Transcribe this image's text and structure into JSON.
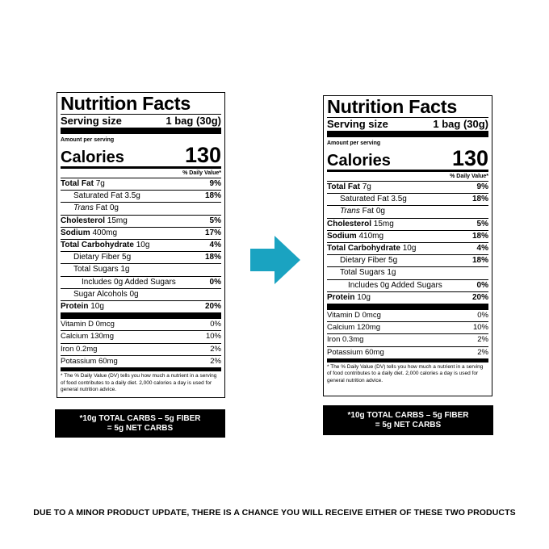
{
  "title": "Nutrition Facts",
  "serving_label": "Serving size",
  "serving_value": "1 bag (30g)",
  "amount_per_serving": "Amount per serving",
  "calories_label": "Calories",
  "dv_header": "% Daily Value*",
  "footnote": "* The % Daily Value (DV) tells you how much a nutrient in a serving of food contributes to a daily diet. 2,000 calories a day is used for general nutrition advice.",
  "old": {
    "calories": "130",
    "total_fat": "7g",
    "total_fat_dv": "9%",
    "sat_fat": "3.5g",
    "sat_fat_dv": "18%",
    "trans_fat": "0g",
    "cholesterol": "15mg",
    "cholesterol_dv": "5%",
    "sodium": "400mg",
    "sodium_dv": "17%",
    "carb": "10g",
    "carb_dv": "4%",
    "fiber": "5g",
    "fiber_dv": "18%",
    "sugars": "1g",
    "added_sugars": "0g",
    "added_sugars_dv": "0%",
    "sugar_alcohols": "Sugar Alcohols 0g",
    "protein": "10g",
    "protein_dv": "20%",
    "vitamin_d": "Vitamin D 0mcg",
    "vitamin_d_dv": "0%",
    "calcium": "Calcium 130mg",
    "calcium_dv": "10%",
    "iron": "Iron 0.2mg",
    "iron_dv": "2%",
    "potassium": "Potassium 60mg",
    "potassium_dv": "2%"
  },
  "new": {
    "calories": "130",
    "total_fat": "7g",
    "total_fat_dv": "9%",
    "sat_fat": "3.5g",
    "sat_fat_dv": "18%",
    "trans_fat": "0g",
    "cholesterol": "15mg",
    "cholesterol_dv": "5%",
    "sodium": "410mg",
    "sodium_dv": "18%",
    "carb": "10g",
    "carb_dv": "4%",
    "fiber": "5g",
    "fiber_dv": "18%",
    "sugars": "1g",
    "added_sugars": "0g",
    "added_sugars_dv": "0%",
    "protein": "10g",
    "protein_dv": "20%",
    "vitamin_d": "Vitamin D 0mcg",
    "vitamin_d_dv": "0%",
    "calcium": "Calcium 120mg",
    "calcium_dv": "10%",
    "iron": "Iron 0.3mg",
    "iron_dv": "2%",
    "potassium": "Potassium 60mg",
    "potassium_dv": "2%"
  },
  "labels": {
    "total_fat": "Total Fat",
    "sat_fat": "Saturated Fat",
    "trans_fat_prefix": "Trans",
    "trans_fat_suffix": "Fat",
    "cholesterol": "Cholesterol",
    "sodium": "Sodium",
    "carb": "Total Carbohydrate",
    "fiber": "Dietary Fiber",
    "sugars": "Total Sugars",
    "added_sugars_prefix": "Includes",
    "added_sugars_suffix": "Added Sugars",
    "protein": "Protein"
  },
  "banner": {
    "line1": "*10g TOTAL CARBS – 5g FIBER",
    "line2": "= 5g NET CARBS"
  },
  "disclaimer": "DUE TO A MINOR PRODUCT UPDATE, THERE IS A CHANCE YOU WILL RECEIVE EITHER OF THESE TWO PRODUCTS",
  "colors": {
    "arrow": "#1aa3c1"
  },
  "arrow_icon": "arrow-right-icon"
}
